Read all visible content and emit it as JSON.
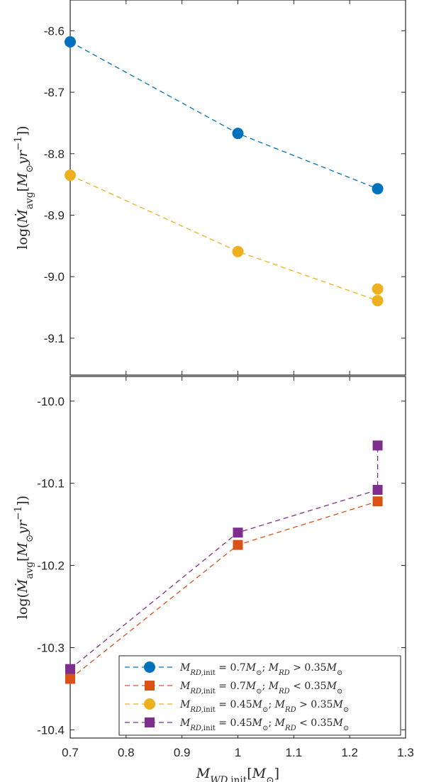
{
  "chart_data": [
    {
      "type": "line",
      "panel": "top",
      "title": "",
      "xlabel": "",
      "ylabel": "log(Ṁavg[M⊙yr⁻¹])",
      "xlim": [
        0.7,
        1.3
      ],
      "ylim": [
        -9.16,
        -8.55
      ],
      "yticks": [
        -8.6,
        -8.7,
        -8.8,
        -8.9,
        -9.0,
        -9.1
      ],
      "ytick_labels": [
        "-8.6",
        "-8.7",
        "-8.8",
        "-8.9",
        "-9.0",
        "-9.1"
      ],
      "grid": false,
      "series": [
        {
          "legend_index": 0,
          "color": "#0072BD",
          "marker": "circle",
          "points": [
            [
              0.7,
              -8.618
            ],
            [
              1.0,
              -8.767
            ],
            [
              1.25,
              -8.857
            ]
          ]
        },
        {
          "legend_index": 2,
          "color": "#EDB120",
          "marker": "circle",
          "points": [
            [
              0.7,
              -8.835
            ],
            [
              1.0,
              -8.959
            ],
            [
              1.25,
              -9.039
            ],
            [
              1.25,
              -9.02
            ]
          ]
        }
      ]
    },
    {
      "type": "line",
      "panel": "bottom",
      "title": "",
      "xlabel": "M_WD,init[M⊙]",
      "ylabel": "log(Ṁavg[M⊙yr⁻¹])",
      "xlim": [
        0.7,
        1.3
      ],
      "ylim": [
        -10.41,
        -9.97
      ],
      "xticks": [
        0.7,
        0.8,
        0.9,
        1.0,
        1.1,
        1.2,
        1.3
      ],
      "xtick_labels": [
        "0.7",
        "0.8",
        "0.9",
        "1",
        "1.1",
        "1.2",
        "1.3"
      ],
      "yticks": [
        -10.0,
        -10.1,
        -10.2,
        -10.3,
        -10.4
      ],
      "ytick_labels": [
        "-10.0",
        "-10.1",
        "-10.2",
        "-10.3",
        "-10.4"
      ],
      "grid": false,
      "legend_position": "bottom-right",
      "series": [
        {
          "legend_index": 1,
          "color": "#D95319",
          "marker": "square",
          "points": [
            [
              0.7,
              -10.338
            ],
            [
              1.0,
              -10.175
            ],
            [
              1.25,
              -10.122
            ]
          ]
        },
        {
          "legend_index": 3,
          "color": "#7E2F8E",
          "marker": "square",
          "points": [
            [
              0.7,
              -10.326
            ],
            [
              1.0,
              -10.16
            ],
            [
              1.25,
              -10.108
            ],
            [
              1.25,
              -10.054
            ]
          ]
        }
      ],
      "legend": [
        {
          "label": "M_RD,init = 0.7M⊙; M_RD > 0.35M⊙",
          "color": "#0072BD",
          "marker": "circle"
        },
        {
          "label": "M_RD,init = 0.7M⊙; M_RD < 0.35M⊙",
          "color": "#D95319",
          "marker": "square"
        },
        {
          "label": "M_RD,init = 0.45M⊙; M_RD > 0.35M⊙",
          "color": "#EDB120",
          "marker": "circle"
        },
        {
          "label": "M_RD,init = 0.45M⊙; M_RD < 0.35M⊙",
          "color": "#7E2F8E",
          "marker": "square"
        }
      ]
    }
  ]
}
